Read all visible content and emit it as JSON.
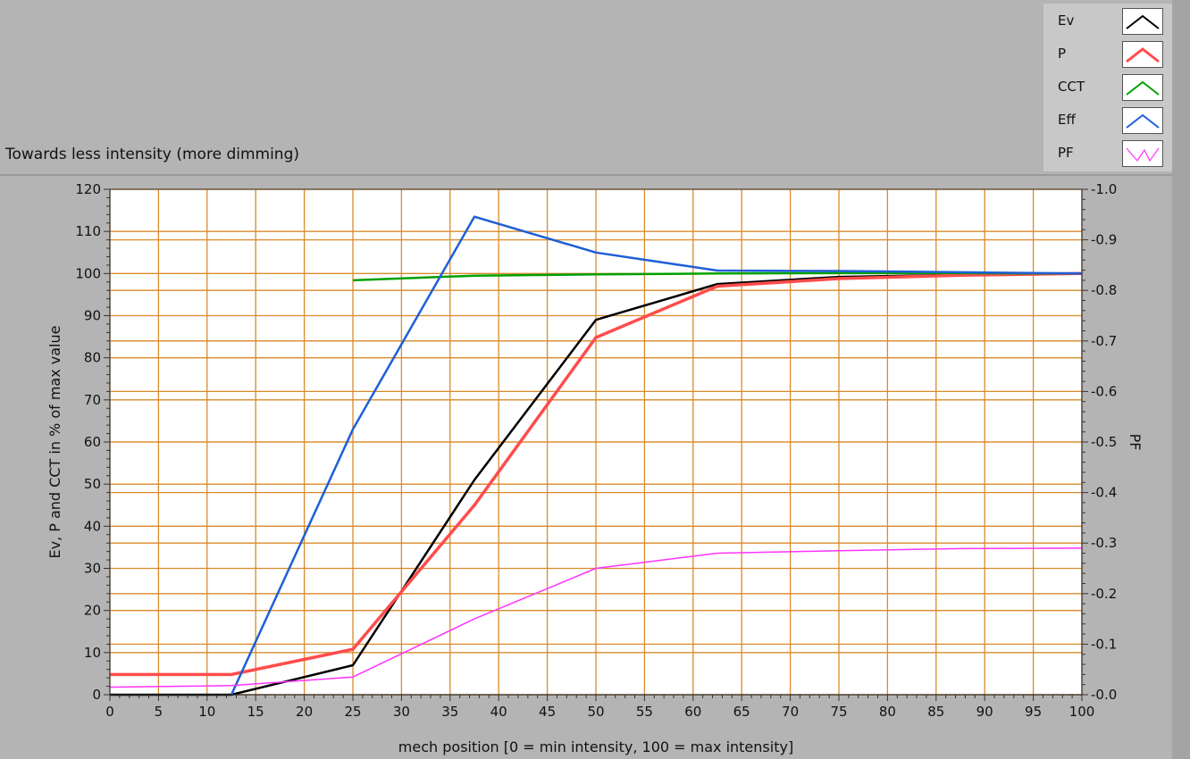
{
  "caption": "Towards less intensity (more dimming)",
  "colors": {
    "background": "#b4b4b4",
    "plot_bg": "#ffffff",
    "grid": "#d98a2b"
  },
  "legend": {
    "items": [
      {
        "label": "Ev",
        "color": "#000000",
        "icon": "peak-line-icon"
      },
      {
        "label": "P",
        "color": "#ff4c4c",
        "icon": "peak-line-icon"
      },
      {
        "label": "CCT",
        "color": "#00a000",
        "icon": "peak-line-icon"
      },
      {
        "label": "Eff",
        "color": "#1f5fd6",
        "icon": "peak-line-icon"
      },
      {
        "label": "PF",
        "color": "#ff33ff",
        "icon": "zigzag-line-icon"
      }
    ]
  },
  "chart_data": {
    "type": "line",
    "xlabel": "mech position [0 = min intensity, 100 = max intensity]",
    "ylabel": "Ev, P and CCT in % of max value",
    "y2label": "PF",
    "xlim": [
      0,
      100
    ],
    "ylim": [
      0,
      120
    ],
    "y2lim": [
      0,
      1.0
    ],
    "xticks": [
      0,
      5,
      10,
      15,
      20,
      25,
      30,
      35,
      40,
      45,
      50,
      55,
      60,
      65,
      70,
      75,
      80,
      85,
      90,
      95,
      100
    ],
    "yticks": [
      0,
      10,
      20,
      30,
      40,
      50,
      60,
      70,
      80,
      90,
      100,
      110,
      120
    ],
    "y2ticks": [
      "0.0",
      "0.1",
      "0.2",
      "0.3",
      "0.4",
      "0.5",
      "0.6",
      "0.7",
      "0.8",
      "0.9",
      "1.0"
    ],
    "grid": true,
    "legend_position": "top-right",
    "series": [
      {
        "name": "Ev",
        "color": "#000000",
        "axis": "left",
        "width": 2.5,
        "x": [
          0,
          12.5,
          25,
          37.5,
          50,
          62.5,
          75,
          87.5,
          100
        ],
        "y": [
          0,
          0,
          7,
          51,
          89,
          97.5,
          99.2,
          99.7,
          100
        ]
      },
      {
        "name": "P",
        "color": "#ff4c4c",
        "axis": "left",
        "width": 3.5,
        "x": [
          0,
          12.5,
          25,
          37.5,
          50,
          62.5,
          75,
          87.5,
          100
        ],
        "y": [
          4.8,
          4.8,
          10.8,
          45,
          84.8,
          97,
          98.8,
          99.6,
          100
        ]
      },
      {
        "name": "CCT",
        "color": "#00a000",
        "axis": "left",
        "width": 2.5,
        "x": [
          25,
          37.5,
          50,
          62.5,
          75,
          87.5,
          100
        ],
        "y": [
          98.4,
          99.5,
          99.8,
          100,
          100.1,
          100.1,
          100
        ]
      },
      {
        "name": "Eff",
        "color": "#1f5fd6",
        "axis": "left",
        "width": 2.5,
        "x": [
          12.5,
          25,
          37.5,
          50,
          62.5,
          75,
          87.5,
          100
        ],
        "y": [
          0,
          63,
          113.5,
          105,
          100.7,
          100.6,
          100.3,
          100
        ]
      },
      {
        "name": "PF",
        "color": "#ff33ff",
        "axis": "right",
        "width": 1.5,
        "x": [
          0,
          12.5,
          25,
          37.5,
          50,
          62.5,
          75,
          87.5,
          100
        ],
        "y": [
          0.015,
          0.018,
          0.035,
          0.15,
          0.25,
          0.28,
          0.285,
          0.289,
          0.29
        ]
      }
    ]
  }
}
